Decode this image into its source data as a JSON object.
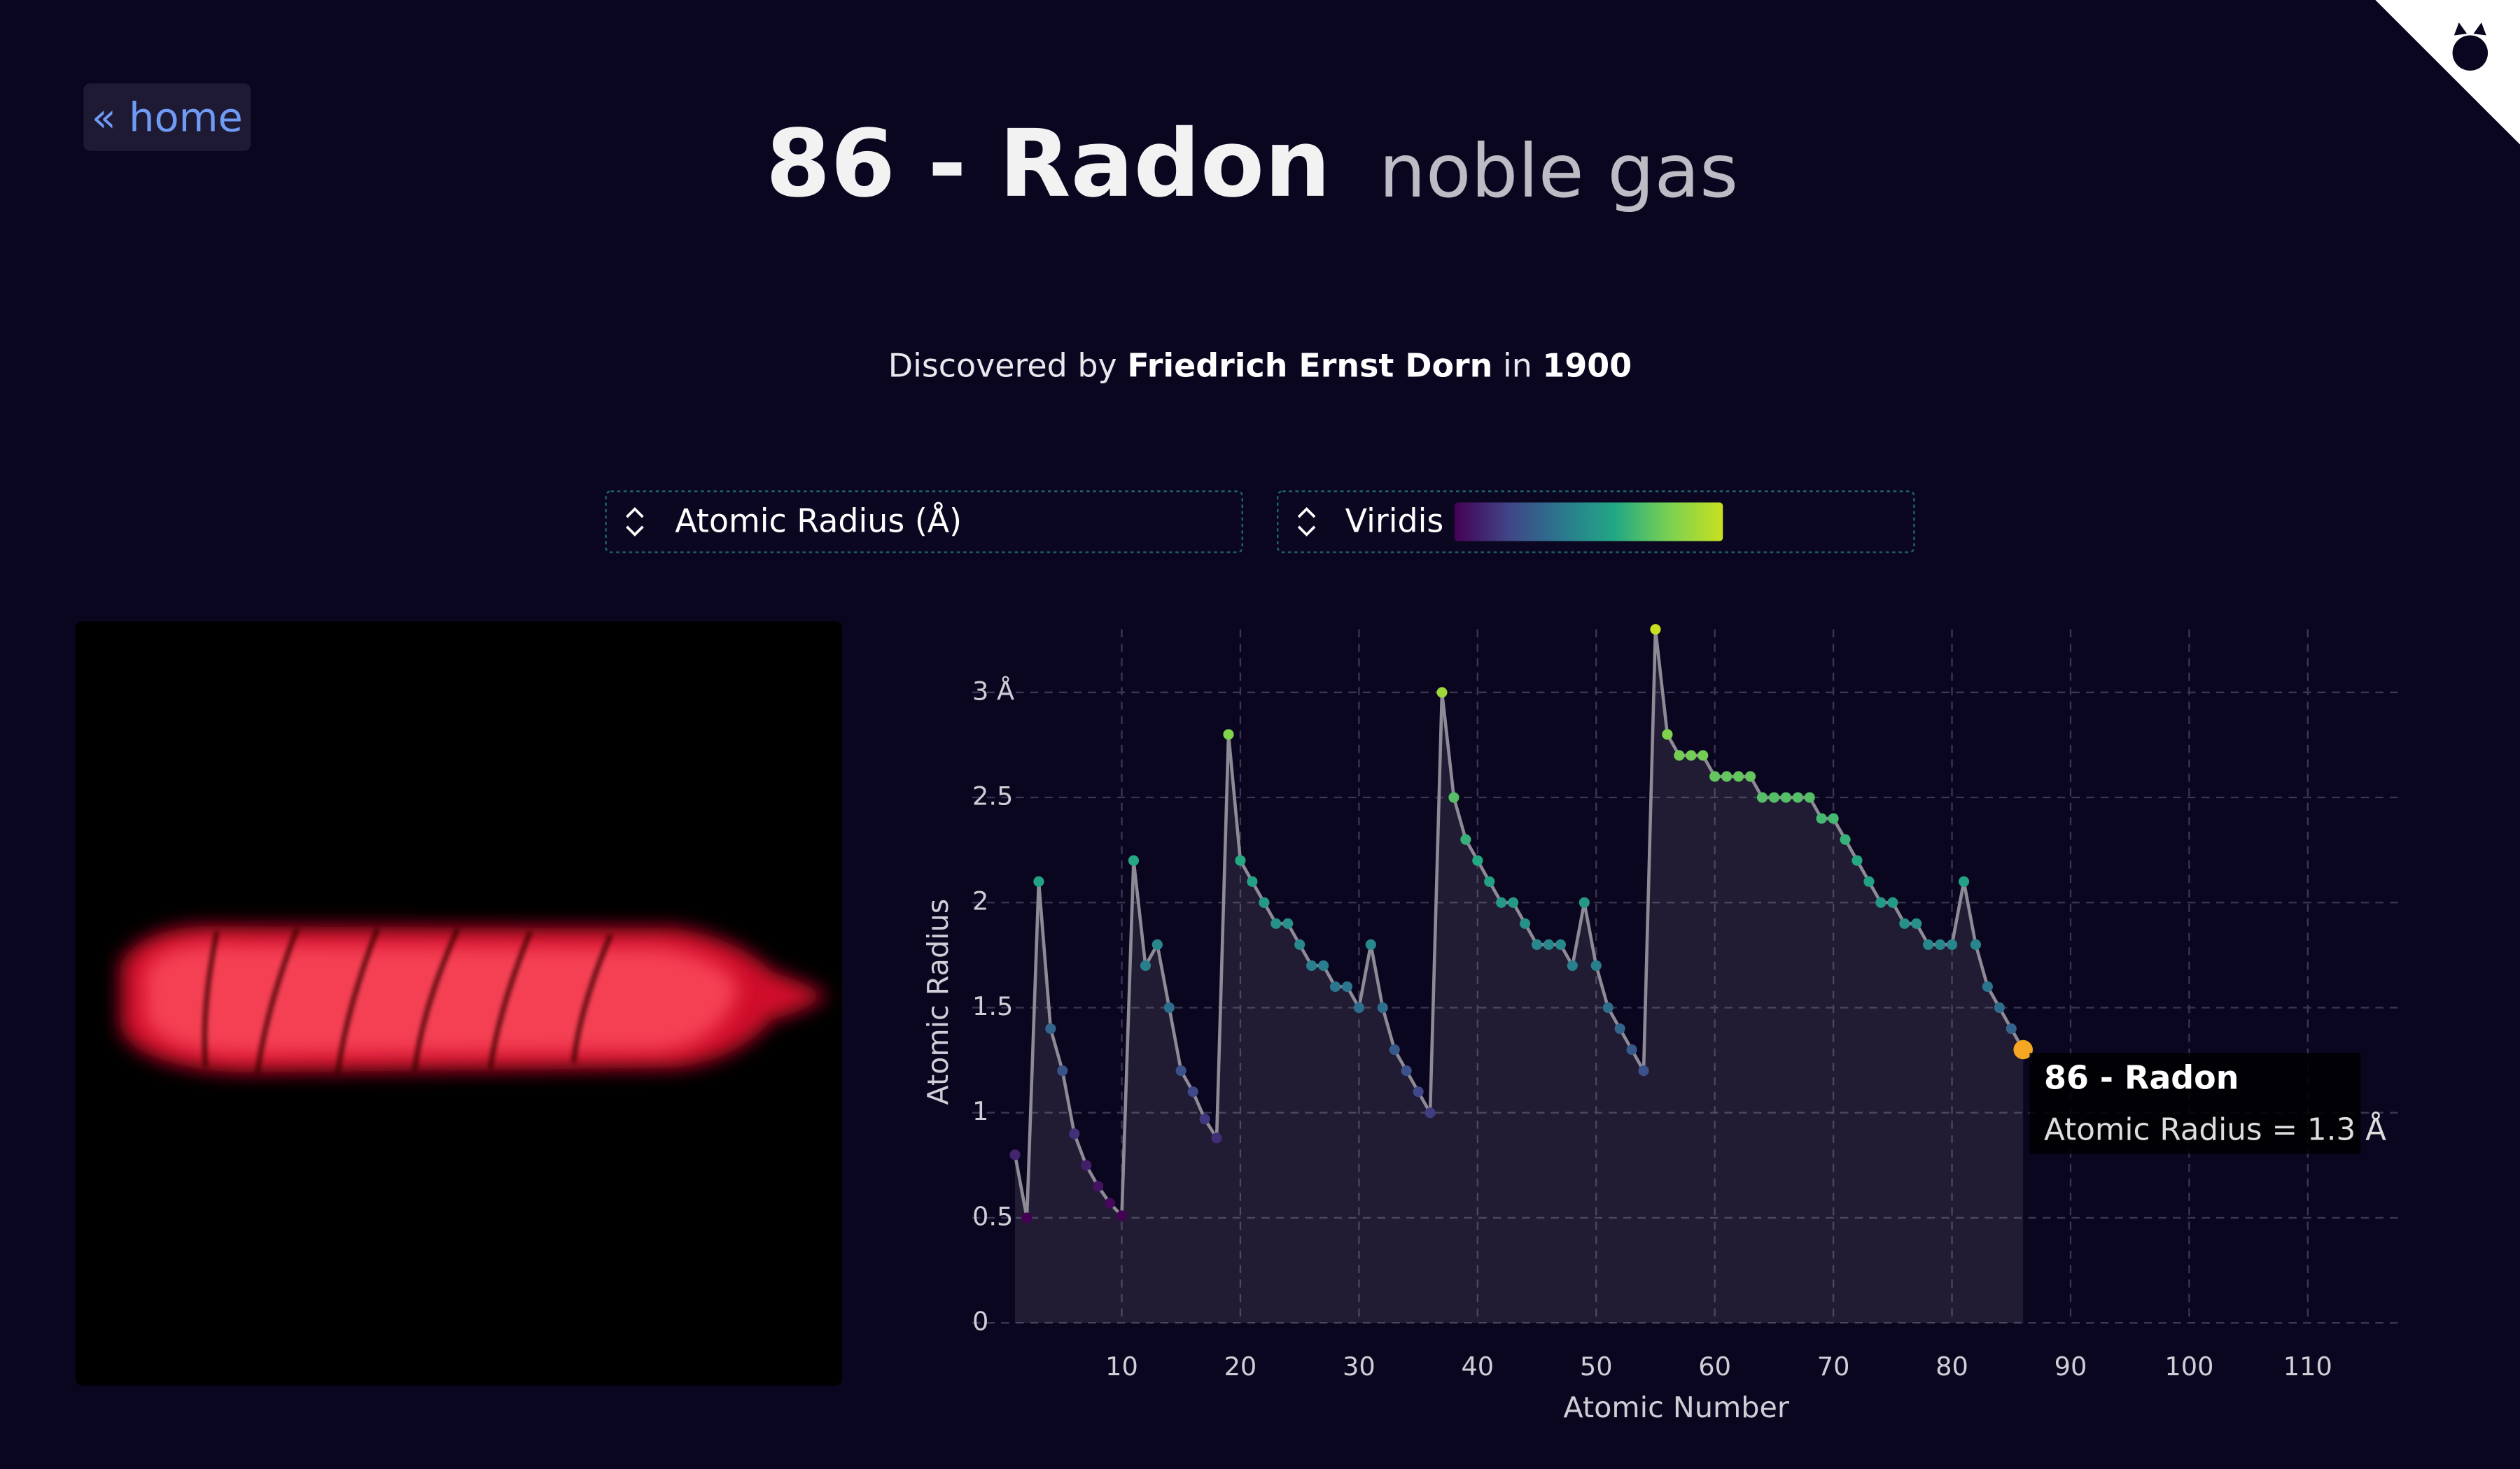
{
  "header": {
    "home": "« home",
    "title": "86 - Radon",
    "category": "noble gas",
    "discovered_prefix": "Discovered by",
    "discoverer": "Friedrich Ernst Dorn",
    "discovered_in": "in",
    "year": "1900"
  },
  "controls": {
    "property": "Atomic Radius (Å)",
    "colormap": "Viridis",
    "colormap_colors": [
      "#440154",
      "#414487",
      "#2a788e",
      "#22a884",
      "#7ad151",
      "#c8e020"
    ]
  },
  "chart_data": {
    "type": "line",
    "x_label": "Atomic Number",
    "y_label": "Atomic Radius",
    "x": [
      1,
      2,
      3,
      4,
      5,
      6,
      7,
      8,
      9,
      10,
      11,
      12,
      13,
      14,
      15,
      16,
      17,
      18,
      19,
      20,
      21,
      22,
      23,
      24,
      25,
      26,
      27,
      28,
      29,
      30,
      31,
      32,
      33,
      34,
      35,
      36,
      37,
      38,
      39,
      40,
      41,
      42,
      43,
      44,
      45,
      46,
      47,
      48,
      49,
      50,
      51,
      52,
      53,
      54,
      55,
      56,
      57,
      58,
      59,
      60,
      61,
      62,
      63,
      64,
      65,
      66,
      67,
      68,
      69,
      70,
      71,
      72,
      73,
      74,
      75,
      76,
      77,
      78,
      79,
      80,
      81,
      82,
      83,
      84,
      85,
      86
    ],
    "values": [
      0.8,
      0.5,
      2.1,
      1.4,
      1.2,
      0.9,
      0.75,
      0.65,
      0.57,
      0.51,
      2.2,
      1.7,
      1.8,
      1.5,
      1.2,
      1.1,
      0.97,
      0.88,
      2.8,
      2.2,
      2.1,
      2.0,
      1.9,
      1.9,
      1.8,
      1.7,
      1.7,
      1.6,
      1.6,
      1.5,
      1.8,
      1.5,
      1.3,
      1.2,
      1.1,
      1.0,
      3.0,
      2.5,
      2.3,
      2.2,
      2.1,
      2.0,
      2.0,
      1.9,
      1.8,
      1.8,
      1.8,
      1.7,
      2.0,
      1.7,
      1.5,
      1.4,
      1.3,
      1.2,
      3.3,
      2.8,
      2.7,
      2.7,
      2.7,
      2.6,
      2.6,
      2.6,
      2.6,
      2.5,
      2.5,
      2.5,
      2.5,
      2.5,
      2.4,
      2.4,
      2.3,
      2.2,
      2.1,
      2.0,
      2.0,
      1.9,
      1.9,
      1.8,
      1.8,
      1.8,
      2.1,
      1.8,
      1.6,
      1.5,
      1.4,
      1.3
    ],
    "xlim": [
      -2.6,
      118
    ],
    "ylim": [
      0,
      3.3
    ],
    "xticks": [
      10,
      20,
      30,
      40,
      50,
      60,
      70,
      80,
      90,
      100,
      110
    ],
    "yticks": [
      0,
      0.5,
      1,
      1.5,
      2,
      2.5,
      {
        "value": 3,
        "label": "3 Å"
      }
    ],
    "grid": true,
    "color": "#8e8a96",
    "tooltip": {
      "title": "86 - Radon",
      "text": "Atomic Radius = 1.3 Å",
      "color": "#f5a623"
    }
  }
}
